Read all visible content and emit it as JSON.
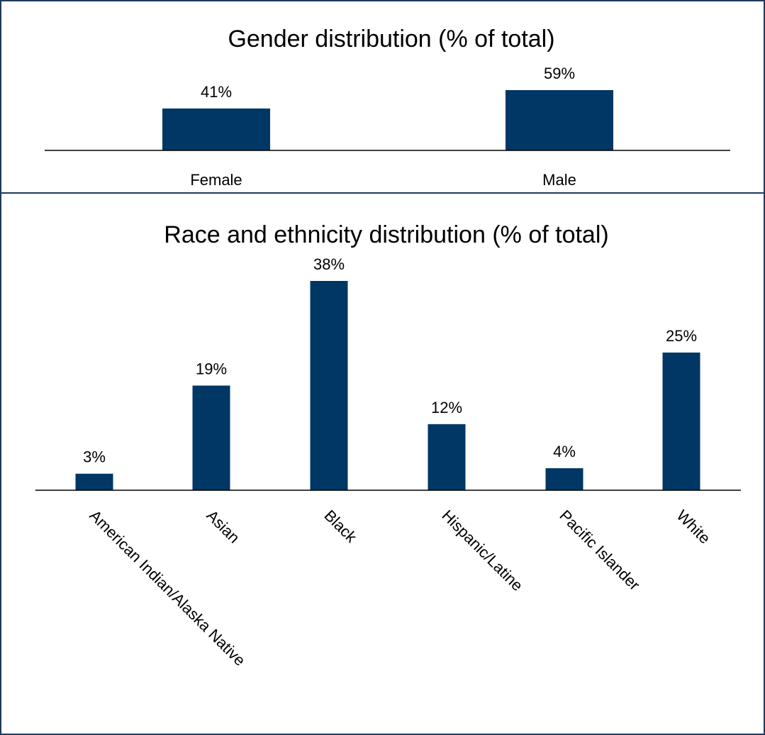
{
  "chart_data": [
    {
      "type": "bar",
      "title": "Gender distribution (% of total)",
      "categories": [
        "Female",
        "Male"
      ],
      "values": [
        41,
        59
      ],
      "value_labels": [
        "41%",
        "59%"
      ],
      "ylim": [
        0,
        60
      ],
      "legend": "none",
      "grid": false
    },
    {
      "type": "bar",
      "title": "Race and ethnicity distribution (% of total)",
      "categories": [
        "American Indian/Alaska Native",
        "Asian",
        "Black",
        "Hispanic/Latine",
        "Pacific Islander",
        "White"
      ],
      "values": [
        3,
        19,
        38,
        12,
        4,
        25
      ],
      "value_labels": [
        "3%",
        "19%",
        "38%",
        "12%",
        "4%",
        "25%"
      ],
      "ylim": [
        0,
        40
      ],
      "legend": "none",
      "grid": false
    }
  ],
  "colors": {
    "bar": "#003764",
    "border": "#1f3a5f",
    "axis": "#000000"
  }
}
